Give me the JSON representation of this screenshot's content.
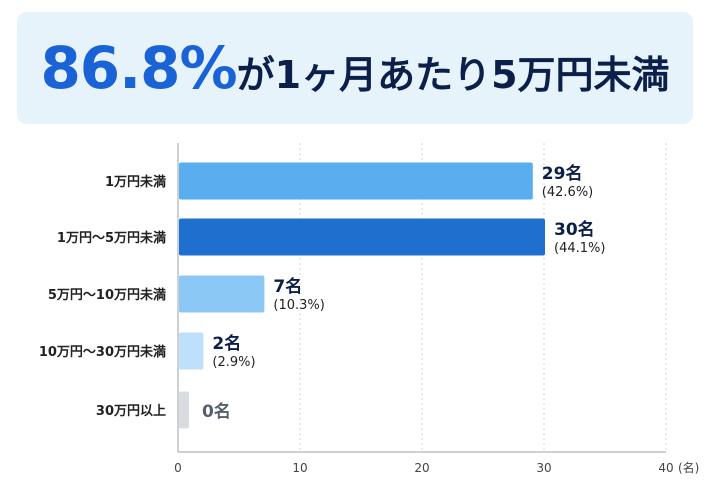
{
  "headline": {
    "highlight": "86.8%",
    "rest": "が1ヶ月あたり5万円未満"
  },
  "colors": {
    "highlight": "#1a63d6",
    "title_text": "#0b1f4a",
    "banner_bg": "#e6f3fb",
    "zero_bar": "#d9dde2"
  },
  "chart_data": {
    "type": "bar",
    "orientation": "horizontal",
    "categories": [
      "1万円未満",
      "1万円〜5万円未満",
      "5万円〜10万円未満",
      "10万円〜30万円未満",
      "30万円以上"
    ],
    "values": [
      29,
      30,
      7,
      2,
      0
    ],
    "value_labels": [
      "29名",
      "30名",
      "7名",
      "2名",
      "0名"
    ],
    "percent_labels": [
      "(42.6%)",
      "(44.1%)",
      "(10.3%)",
      "(2.9%)",
      ""
    ],
    "bar_colors": [
      "#5aaef0",
      "#1f6fcf",
      "#8cc8f5",
      "#bfe0fa",
      "#d9dde2"
    ],
    "xlim": [
      0,
      40
    ],
    "xticks": [
      0,
      10,
      20,
      30,
      40
    ],
    "xunit": "(名)",
    "grid": true
  }
}
